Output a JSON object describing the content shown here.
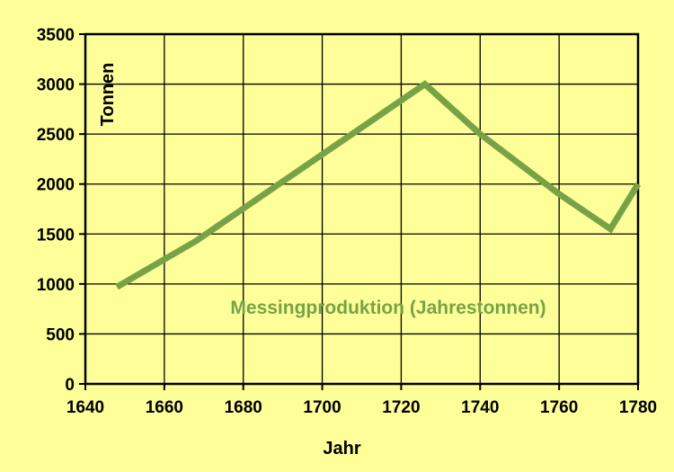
{
  "chart_data": {
    "type": "line",
    "xlabel": "Jahr",
    "ylabel": "Tonnen",
    "xlim": [
      1640,
      1780
    ],
    "ylim": [
      0,
      3500
    ],
    "x_ticks": [
      1640,
      1660,
      1680,
      1700,
      1720,
      1740,
      1760,
      1780
    ],
    "y_ticks": [
      0,
      500,
      1000,
      1500,
      2000,
      2500,
      3000,
      3500
    ],
    "grid": true,
    "series": [
      {
        "name": "Messingproduktion (Jahrestonnen)",
        "color": "#77A346",
        "x": [
          1648,
          1668,
          1726,
          1740,
          1760,
          1773,
          1780
        ],
        "y": [
          970,
          1430,
          3000,
          2500,
          1900,
          1550,
          2000
        ]
      }
    ]
  }
}
